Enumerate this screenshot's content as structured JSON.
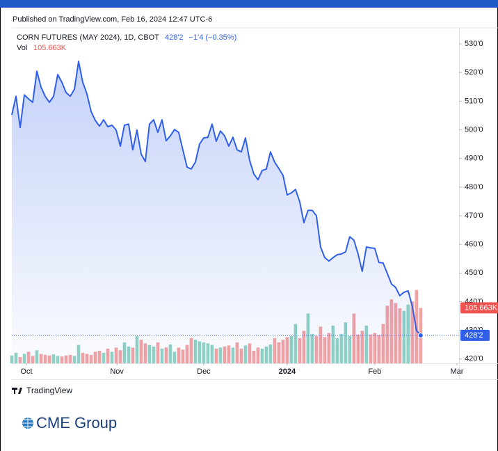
{
  "published": "Published on TradingView.com, Feb 16, 2024 12:47 UTC-6",
  "footer": {
    "brand": "TradingView",
    "logo": "CME Group"
  },
  "chart_data": {
    "type": "line",
    "title": "CORN FUTURES (MAY 2024), 1D, CBOT",
    "last_price": "428'2",
    "change": "−1'4 (−0.35%)",
    "vol_label": "Vol",
    "vol_value": "105.663K",
    "x": [
      0,
      1,
      2,
      3,
      4,
      5,
      6,
      7,
      8,
      9,
      10,
      11,
      12,
      13,
      14,
      15,
      16,
      17,
      18,
      19,
      20,
      21,
      22,
      23,
      24,
      25,
      26,
      27,
      28,
      29,
      30,
      31,
      32,
      33,
      34,
      35,
      36,
      37,
      38,
      39,
      40,
      41,
      42,
      43,
      44,
      45,
      46,
      47,
      48,
      49,
      50,
      51,
      52,
      53,
      54,
      55,
      56,
      57,
      58,
      59,
      60,
      61,
      62,
      63,
      64,
      65,
      66,
      67,
      68,
      69,
      70,
      71,
      72,
      73,
      74,
      75,
      76,
      77,
      78,
      79,
      80,
      81,
      82,
      83,
      84,
      85,
      86,
      87,
      88,
      89,
      90,
      91,
      92,
      93,
      94,
      95,
      96,
      97,
      98
    ],
    "series": [
      {
        "name": "CORN FUTURES (MAY 2024)",
        "color": "#2f5fe8",
        "values": [
          505.2,
          511.7,
          500.8,
          512.2,
          510.8,
          509.6,
          520.5,
          514.9,
          511.7,
          509.6,
          511.7,
          519.3,
          516.6,
          513,
          511.7,
          514.2,
          523.9,
          516.6,
          512.5,
          506.4,
          503.3,
          501.3,
          503.5,
          501.1,
          501.6,
          499.9,
          494.3,
          501.6,
          502,
          493,
          499.9,
          491.6,
          488.9,
          502,
          503.5,
          499.1,
          503.5,
          496.2,
          497.9,
          500.1,
          499.1,
          493,
          487,
          486.3,
          488.7,
          495,
          497.2,
          497.4,
          502,
          496,
          499.6,
          497.9,
          494.3,
          497.4,
          493,
          492.3,
          497.2,
          489.4,
          484.6,
          482.6,
          485.8,
          486.3,
          492.3,
          488.7,
          486.5,
          484.1,
          477.3,
          478,
          479.2,
          474.9,
          467.6,
          471.9,
          471.9,
          470,
          459.1,
          455.4,
          454.2,
          455.4,
          456.4,
          456.7,
          457.4,
          462.7,
          461.5,
          456.7,
          450.6,
          459.1,
          458.8,
          458.6,
          453.7,
          453.5,
          449.9,
          446.2,
          445,
          442.1,
          443.3,
          443.8,
          438.4,
          430,
          428.25
        ]
      },
      {
        "name": "Vol",
        "axis": "y2",
        "up_color": "#92d2c4",
        "down_color": "#f4a3a3",
        "values": [
          15,
          20,
          12,
          18,
          22,
          14,
          25,
          18,
          16,
          15,
          17,
          14,
          13,
          15,
          16,
          14,
          35,
          20,
          18,
          16,
          22,
          24,
          20,
          28,
          22,
          30,
          25,
          40,
          32,
          30,
          52,
          45,
          38,
          35,
          32,
          40,
          28,
          30,
          36,
          22,
          30,
          26,
          35,
          48,
          45,
          42,
          40,
          38,
          35,
          28,
          30,
          32,
          34,
          30,
          40,
          28,
          34,
          38,
          24,
          30,
          28,
          32,
          36,
          48,
          40,
          45,
          50,
          52,
          75,
          48,
          62,
          95,
          56,
          52,
          70,
          50,
          58,
          72,
          48,
          56,
          78,
          52,
          95,
          55,
          62,
          72,
          55,
          58,
          54,
          75,
          110,
          122,
          115,
          105,
          100,
          112,
          118,
          140,
          105.663
        ]
      }
    ],
    "xlim": [
      0,
      107.2
    ],
    "xticks": [
      {
        "value": 3.5,
        "label": "Oct"
      },
      {
        "value": 25.2,
        "label": "Nov"
      },
      {
        "value": 46,
        "label": "Dec"
      },
      {
        "value": 66,
        "label": "2024"
      },
      {
        "value": 87,
        "label": "Feb"
      },
      {
        "value": 106.7,
        "label": "Mar"
      }
    ],
    "ylim": [
      418.5,
      535.6
    ],
    "yticks": [
      {
        "value": 420,
        "label": "420'0"
      },
      {
        "value": 430,
        "label": "430'0"
      },
      {
        "value": 440,
        "label": "440'0"
      },
      {
        "value": 450,
        "label": "450'0"
      },
      {
        "value": 460,
        "label": "460'0"
      },
      {
        "value": 470,
        "label": "470'0"
      },
      {
        "value": 480,
        "label": "480'0"
      },
      {
        "value": 490,
        "label": "490'0"
      },
      {
        "value": 500,
        "label": "500'0"
      },
      {
        "value": 510,
        "label": "510'0"
      },
      {
        "value": 520,
        "label": "520'0"
      },
      {
        "value": 530,
        "label": "530'0"
      }
    ],
    "y2lim": [
      0,
      640
    ],
    "grid": false
  }
}
